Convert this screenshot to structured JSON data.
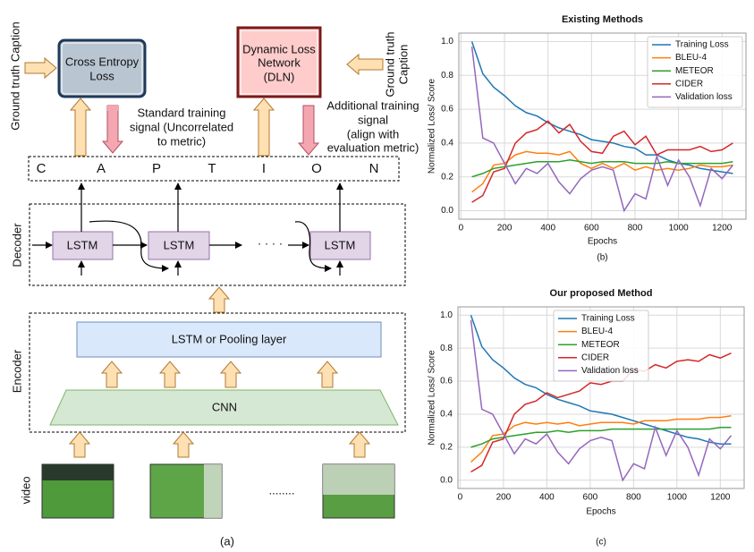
{
  "diagram": {
    "left_caption": "Ground truth Caption",
    "right_caption": [
      "Ground truth",
      "Caption"
    ],
    "cross_entropy": [
      "Cross Entropy",
      "Loss"
    ],
    "dln": [
      "Dynamic Loss",
      "Network",
      "(DLN)"
    ],
    "standard_signal": [
      "Standard training",
      "signal (Uncorrelated",
      "to metric)"
    ],
    "additional_signal": [
      "Additional training",
      "signal",
      "(align with",
      "evaluation metric)"
    ],
    "caption_letters": [
      "C",
      "A",
      "P",
      "T",
      "I",
      "O",
      "N"
    ],
    "decoder_label": "Decoder",
    "lstm_cells": [
      "LSTM",
      "LSTM",
      "LSTM"
    ],
    "decoder_dots": "· · · ·",
    "encoder_label": "Encoder",
    "pooling": "LSTM or Pooling layer",
    "cnn": "CNN",
    "video_label": "video",
    "video_dots": "........",
    "panel_label": "(a)"
  },
  "chart_data": [
    {
      "type": "line",
      "title": "Existing Methods",
      "x_label": "Epochs",
      "y_label": "Normalized Loss/ Score",
      "panel_label": "(b)",
      "x": [
        50,
        100,
        150,
        200,
        250,
        300,
        350,
        400,
        450,
        500,
        550,
        600,
        650,
        700,
        750,
        800,
        850,
        900,
        950,
        1000,
        1050,
        1100,
        1150,
        1200,
        1250
      ],
      "series": [
        {
          "name": "Training Loss",
          "color": "#1f77b4",
          "values": [
            1.0,
            0.81,
            0.73,
            0.68,
            0.62,
            0.58,
            0.56,
            0.52,
            0.49,
            0.47,
            0.45,
            0.42,
            0.41,
            0.4,
            0.38,
            0.37,
            0.33,
            0.33,
            0.3,
            0.28,
            0.27,
            0.25,
            0.24,
            0.23,
            0.22
          ]
        },
        {
          "name": "BLEU-4",
          "color": "#ff7f0e",
          "values": [
            0.11,
            0.16,
            0.27,
            0.28,
            0.33,
            0.35,
            0.34,
            0.34,
            0.33,
            0.35,
            0.28,
            0.25,
            0.28,
            0.25,
            0.28,
            0.24,
            0.26,
            0.24,
            0.25,
            0.24,
            0.25,
            0.27,
            0.26,
            0.26,
            0.27
          ]
        },
        {
          "name": "METEOR",
          "color": "#2ca02c",
          "values": [
            0.2,
            0.22,
            0.25,
            0.26,
            0.27,
            0.28,
            0.29,
            0.29,
            0.29,
            0.3,
            0.29,
            0.28,
            0.29,
            0.29,
            0.29,
            0.28,
            0.28,
            0.28,
            0.29,
            0.28,
            0.28,
            0.28,
            0.28,
            0.28,
            0.29
          ]
        },
        {
          "name": "CIDER",
          "color": "#d62728",
          "values": [
            0.05,
            0.09,
            0.23,
            0.25,
            0.4,
            0.46,
            0.48,
            0.53,
            0.46,
            0.51,
            0.41,
            0.35,
            0.34,
            0.44,
            0.47,
            0.39,
            0.44,
            0.33,
            0.36,
            0.36,
            0.36,
            0.38,
            0.35,
            0.36,
            0.4
          ]
        },
        {
          "name": "Validation loss",
          "color": "#9467bd",
          "values": [
            0.97,
            0.43,
            0.4,
            0.28,
            0.16,
            0.25,
            0.22,
            0.28,
            0.17,
            0.1,
            0.19,
            0.24,
            0.26,
            0.24,
            0.0,
            0.1,
            0.07,
            0.32,
            0.15,
            0.3,
            0.2,
            0.03,
            0.25,
            0.19,
            0.27
          ]
        }
      ],
      "xlim": [
        -10,
        1310
      ],
      "ylim": [
        -0.05,
        1.05
      ],
      "xticks": [
        0,
        200,
        400,
        600,
        800,
        1000,
        1200
      ],
      "yticks": [
        {
          "value": 0,
          "label": "0.0"
        },
        0.2,
        0.4,
        0.6,
        0.8,
        {
          "value": 1,
          "label": "1.0"
        }
      ],
      "grid": true,
      "legend": "upper right"
    },
    {
      "type": "line",
      "title": "Our proposed Method",
      "x_label": "Epochs",
      "y_label": "Normalized Loss/ Score",
      "panel_label": "(c)",
      "x": [
        50,
        100,
        150,
        200,
        250,
        300,
        350,
        400,
        450,
        500,
        550,
        600,
        650,
        700,
        750,
        800,
        850,
        900,
        950,
        1000,
        1050,
        1100,
        1150,
        1200,
        1250
      ],
      "series": [
        {
          "name": "Training Loss",
          "color": "#1f77b4",
          "values": [
            1.0,
            0.81,
            0.73,
            0.68,
            0.62,
            0.58,
            0.56,
            0.52,
            0.49,
            0.47,
            0.45,
            0.42,
            0.41,
            0.4,
            0.38,
            0.36,
            0.34,
            0.32,
            0.3,
            0.28,
            0.26,
            0.25,
            0.23,
            0.22,
            0.22
          ]
        },
        {
          "name": "BLEU-4",
          "color": "#ff7f0e",
          "values": [
            0.11,
            0.17,
            0.27,
            0.28,
            0.33,
            0.35,
            0.34,
            0.35,
            0.34,
            0.35,
            0.33,
            0.34,
            0.35,
            0.35,
            0.35,
            0.34,
            0.36,
            0.36,
            0.36,
            0.37,
            0.37,
            0.37,
            0.38,
            0.38,
            0.39
          ]
        },
        {
          "name": "METEOR",
          "color": "#2ca02c",
          "values": [
            0.2,
            0.22,
            0.25,
            0.26,
            0.27,
            0.28,
            0.29,
            0.29,
            0.3,
            0.29,
            0.3,
            0.3,
            0.3,
            0.31,
            0.31,
            0.31,
            0.31,
            0.31,
            0.31,
            0.31,
            0.31,
            0.31,
            0.31,
            0.32,
            0.32
          ]
        },
        {
          "name": "CIDER",
          "color": "#d62728",
          "values": [
            0.05,
            0.09,
            0.23,
            0.25,
            0.4,
            0.46,
            0.48,
            0.53,
            0.5,
            0.52,
            0.54,
            0.59,
            0.58,
            0.6,
            0.6,
            0.67,
            0.66,
            0.7,
            0.68,
            0.72,
            0.73,
            0.72,
            0.76,
            0.74,
            0.77
          ]
        },
        {
          "name": "Validation loss",
          "color": "#9467bd",
          "values": [
            0.97,
            0.43,
            0.4,
            0.28,
            0.16,
            0.25,
            0.22,
            0.28,
            0.17,
            0.1,
            0.19,
            0.24,
            0.26,
            0.24,
            0.0,
            0.1,
            0.07,
            0.32,
            0.15,
            0.3,
            0.2,
            0.03,
            0.25,
            0.19,
            0.27
          ]
        }
      ],
      "xlim": [
        -10,
        1310
      ],
      "ylim": [
        -0.05,
        1.05
      ],
      "xticks": [
        0,
        200,
        400,
        600,
        800,
        1000,
        1200
      ],
      "yticks": [
        {
          "value": 0,
          "label": "0.0"
        },
        0.2,
        0.4,
        0.6,
        0.8,
        {
          "value": 1,
          "label": "1.0"
        }
      ],
      "grid": true,
      "legend": "upper center"
    }
  ]
}
